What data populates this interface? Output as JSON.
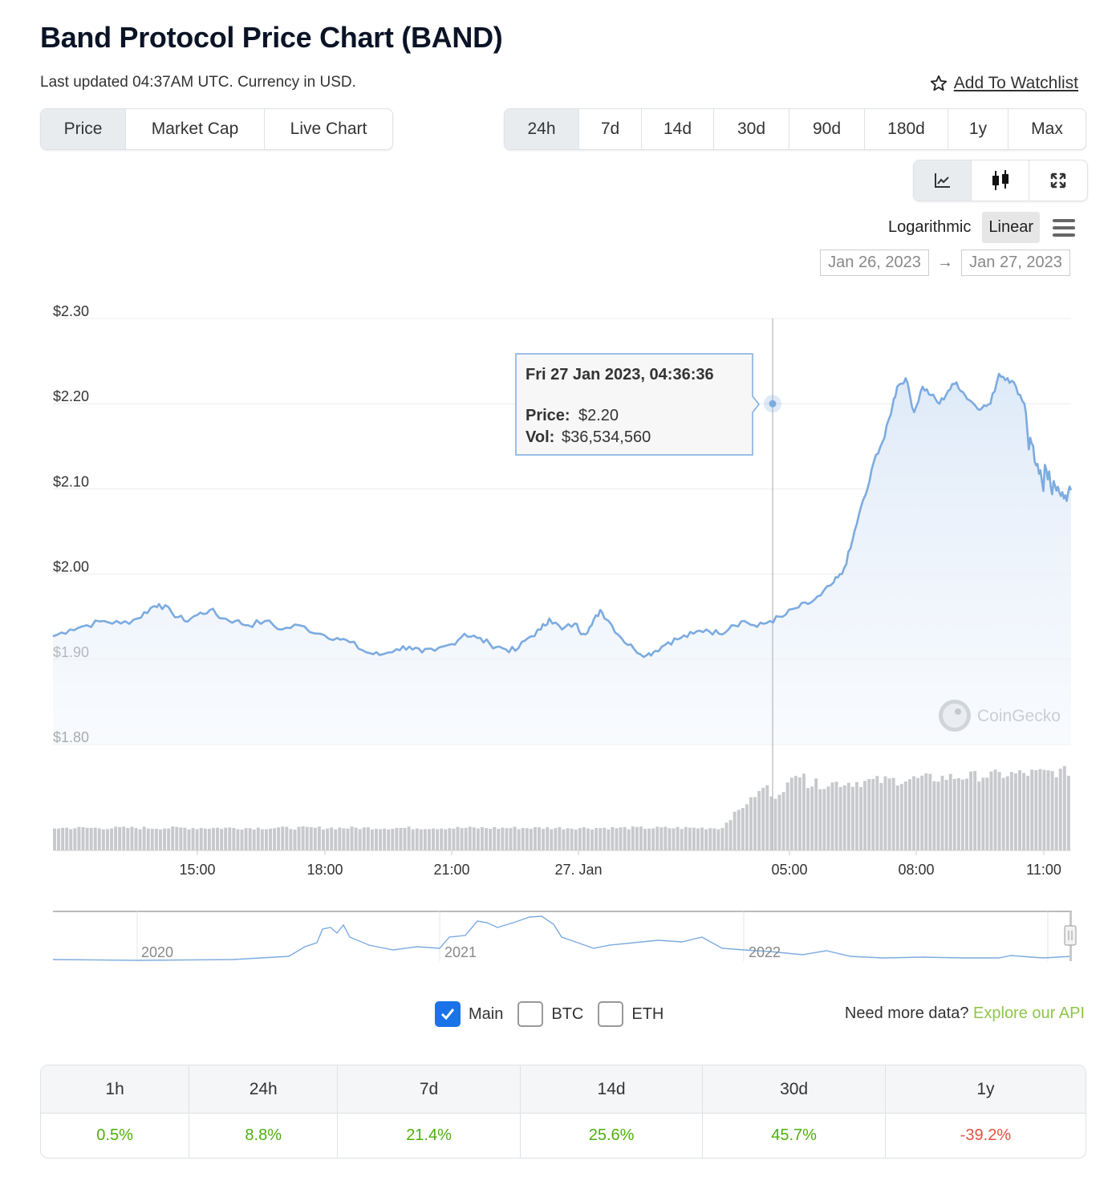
{
  "header": {
    "title": "Band Protocol Price Chart (BAND)",
    "updated": "Last updated 04:37AM UTC. Currency in USD.",
    "watchlist_label": "Add To Watchlist"
  },
  "view_tabs": [
    {
      "label": "Price",
      "active": true
    },
    {
      "label": "Market Cap",
      "active": false
    },
    {
      "label": "Live Chart",
      "active": false
    }
  ],
  "range_tabs": [
    {
      "label": "24h",
      "active": true
    },
    {
      "label": "7d",
      "active": false
    },
    {
      "label": "14d",
      "active": false
    },
    {
      "label": "30d",
      "active": false
    },
    {
      "label": "90d",
      "active": false
    },
    {
      "label": "180d",
      "active": false
    },
    {
      "label": "1y",
      "active": false
    },
    {
      "label": "Max",
      "active": false
    }
  ],
  "chart_types": [
    {
      "icon": "line-chart-icon",
      "active": true
    },
    {
      "icon": "candlestick-icon",
      "active": false
    },
    {
      "icon": "expand-icon",
      "active": false
    }
  ],
  "scale": {
    "log_label": "Logarithmic",
    "linear_label": "Linear",
    "active": "linear"
  },
  "date_range": {
    "from": "Jan 26, 2023",
    "to": "Jan 27, 2023",
    "arrow": "→"
  },
  "tooltip": {
    "date": "Fri 27 Jan 2023, 04:36:36",
    "price_label": "Price:",
    "price_value": "$2.20",
    "vol_label": "Vol:",
    "vol_value": "$36,534,560"
  },
  "watermark": "CoinGecko",
  "toggles": [
    {
      "label": "Main",
      "checked": true
    },
    {
      "label": "BTC",
      "checked": false
    },
    {
      "label": "ETH",
      "checked": false
    }
  ],
  "api": {
    "prefix": "Need more data?",
    "link": "Explore our API"
  },
  "performance": {
    "headers": [
      "1h",
      "24h",
      "7d",
      "14d",
      "30d",
      "1y"
    ],
    "values": [
      "0.5%",
      "8.8%",
      "21.4%",
      "25.6%",
      "45.7%",
      "-39.2%"
    ],
    "colors": [
      "#4eaf0a",
      "#4eaf0a",
      "#4eaf0a",
      "#4eaf0a",
      "#4eaf0a",
      "#e15241"
    ]
  },
  "colors": {
    "line": "#7cabe0",
    "area": "#e6f0fb",
    "volume": "#c7c9cc",
    "positive": "#4eaf0a",
    "negative": "#e15241"
  },
  "chart_data": {
    "type": "area",
    "y_tick_labels": [
      "$2.30",
      "$2.20",
      "$2.10",
      "$2.00",
      "$1.90",
      "$1.80"
    ],
    "y_ticks": [
      2.3,
      2.2,
      2.1,
      2.0,
      1.9,
      1.8
    ],
    "ylim": [
      1.8,
      2.3
    ],
    "x_tick_labels": [
      "15:00",
      "18:00",
      "21:00",
      "27. Jan",
      "05:00",
      "08:00",
      "11:00"
    ],
    "x_ticks": [
      15,
      18,
      21,
      24,
      29,
      32,
      35
    ],
    "xlim": [
      11.6,
      35.6
    ],
    "series": [
      {
        "values": [
          [
            11.6,
            1.927
          ],
          [
            12.0,
            1.935
          ],
          [
            12.4,
            1.94
          ],
          [
            12.8,
            1.945
          ],
          [
            13.2,
            1.942
          ],
          [
            13.6,
            1.948
          ],
          [
            13.9,
            1.96
          ],
          [
            14.1,
            1.965
          ],
          [
            14.4,
            1.955
          ],
          [
            14.7,
            1.945
          ],
          [
            15.0,
            1.952
          ],
          [
            15.3,
            1.958
          ],
          [
            15.6,
            1.948
          ],
          [
            15.9,
            1.945
          ],
          [
            16.2,
            1.94
          ],
          [
            16.6,
            1.945
          ],
          [
            17.0,
            1.935
          ],
          [
            17.4,
            1.94
          ],
          [
            17.9,
            1.93
          ],
          [
            18.3,
            1.925
          ],
          [
            18.6,
            1.92
          ],
          [
            19.0,
            1.908
          ],
          [
            19.3,
            1.905
          ],
          [
            19.7,
            1.912
          ],
          [
            20.0,
            1.915
          ],
          [
            20.3,
            1.908
          ],
          [
            20.6,
            1.91
          ],
          [
            21.0,
            1.918
          ],
          [
            21.3,
            1.93
          ],
          [
            21.6,
            1.925
          ],
          [
            21.9,
            1.918
          ],
          [
            22.2,
            1.913
          ],
          [
            22.5,
            1.91
          ],
          [
            22.8,
            1.925
          ],
          [
            23.1,
            1.935
          ],
          [
            23.3,
            1.948
          ],
          [
            23.6,
            1.935
          ],
          [
            23.9,
            1.942
          ],
          [
            24.1,
            1.93
          ],
          [
            24.3,
            1.94
          ],
          [
            24.5,
            1.958
          ],
          [
            24.7,
            1.945
          ],
          [
            25.0,
            1.925
          ],
          [
            25.3,
            1.912
          ],
          [
            25.6,
            1.905
          ],
          [
            25.8,
            1.91
          ],
          [
            26.1,
            1.92
          ],
          [
            26.4,
            1.925
          ],
          [
            26.7,
            1.93
          ],
          [
            27.0,
            1.935
          ],
          [
            27.3,
            1.93
          ],
          [
            27.6,
            1.94
          ],
          [
            27.9,
            1.945
          ],
          [
            28.2,
            1.938
          ],
          [
            28.5,
            1.945
          ],
          [
            28.8,
            1.95
          ],
          [
            29.1,
            1.96
          ],
          [
            29.4,
            1.965
          ],
          [
            29.7,
            1.975
          ],
          [
            30.0,
            1.99
          ],
          [
            30.2,
            2.0
          ],
          [
            30.4,
            2.03
          ],
          [
            30.6,
            2.07
          ],
          [
            30.8,
            2.1
          ],
          [
            31.0,
            2.14
          ],
          [
            31.2,
            2.16
          ],
          [
            31.4,
            2.2
          ],
          [
            31.5,
            2.22
          ],
          [
            31.7,
            2.23
          ],
          [
            31.9,
            2.19
          ],
          [
            32.1,
            2.22
          ],
          [
            32.3,
            2.21
          ],
          [
            32.5,
            2.2
          ],
          [
            32.7,
            2.215
          ],
          [
            32.9,
            2.225
          ],
          [
            33.1,
            2.21
          ],
          [
            33.3,
            2.2
          ],
          [
            33.5,
            2.195
          ],
          [
            33.7,
            2.2
          ],
          [
            33.9,
            2.235
          ],
          [
            34.1,
            2.23
          ],
          [
            34.3,
            2.22
          ],
          [
            34.5,
            2.2
          ]
        ]
      }
    ],
    "volume_note": "volume bars below price pane (no axis values shown)",
    "grid": true,
    "navigator_labels": [
      "2020",
      "2021",
      "2022"
    ]
  }
}
